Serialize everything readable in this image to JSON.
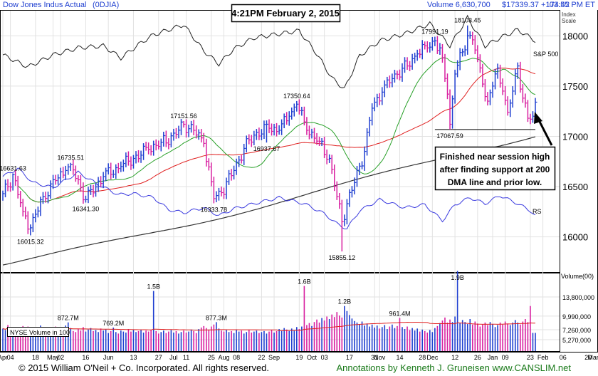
{
  "header": {
    "title": "Dow Jones Indus Actual",
    "symbol": "(0DJIA)",
    "volume": "Volume 6,630,700",
    "price": "$17339.37 +174.42",
    "time": "03:55 PM ET",
    "timestamp_box": "4:21PM February 2, 2015"
  },
  "labels": {
    "index_scale": [
      "Index",
      "Scale"
    ],
    "sp500": "S&P 500",
    "rs": "RS",
    "volume_axis": "Volume(00)",
    "nyse_volume": "NYSE Volume in 100"
  },
  "annotation": {
    "lines": [
      "Finished near session high",
      "after finding support at 200",
      "DMA line and prior low."
    ]
  },
  "footer": {
    "copyright": "© 2015  William O'Neil + Co. Incorporated. All rights reserved.",
    "credit": "Annotations by Kenneth J. Gruneisen www.CANSLIM.net"
  },
  "colors": {
    "up_bar": "#1f3fd0",
    "down_bar": "#d81fa0",
    "sp500": "#222222",
    "rs": "#3a3adf",
    "dma50": "#2aa12a",
    "dma200": "#333333",
    "red_ma": "#e02020",
    "vol_ma": "#e02020",
    "grid": "#e2e2e2",
    "credit": "#1a7a1a"
  },
  "chart_data": {
    "type": "bar",
    "series_kind": "ohlc-daily",
    "y_price_ticks": [
      16000,
      16500,
      17000,
      17500,
      18000
    ],
    "y_price_range": [
      15650,
      18250
    ],
    "y_volume_ticks": [
      "13,800,000",
      "9,990,000",
      "7,260,000",
      "5,270,000"
    ],
    "y_volume_values": [
      13800000,
      9990000,
      7260000,
      5270000
    ],
    "y_volume_range": [
      3000000,
      18500000
    ],
    "x_tick_labels": [
      "Apr",
      "04",
      "18",
      "May",
      "02",
      "16",
      "Jun",
      "13",
      "27",
      "Jul",
      "11",
      "25",
      "Aug",
      "08",
      "22",
      "Sep",
      "19",
      "Oct",
      "03",
      "17",
      "31",
      "Nov",
      "14",
      "28",
      "Dec",
      "12",
      "26",
      "Jan",
      "09",
      "23",
      "Feb",
      "06",
      "20",
      "Mar"
    ],
    "x_tick_index": [
      0,
      3,
      13,
      20,
      23,
      33,
      42,
      52,
      62,
      68,
      73,
      83,
      88,
      93,
      103,
      108,
      118,
      123,
      128,
      138,
      148,
      150,
      158,
      167,
      171,
      180,
      189,
      195,
      200,
      210,
      215,
      223,
      233,
      235
    ],
    "price_callouts": [
      {
        "label": "16631.63",
        "i": 4,
        "v": 16632
      },
      {
        "label": "16015.32",
        "i": 11,
        "v": 16015
      },
      {
        "label": "16735.51",
        "i": 27,
        "v": 16736
      },
      {
        "label": "16341.30",
        "i": 33,
        "v": 16341
      },
      {
        "label": "17151.56",
        "i": 72,
        "v": 17152
      },
      {
        "label": "16333.78",
        "i": 84,
        "v": 16334
      },
      {
        "label": "16937.67",
        "i": 105,
        "v": 16938
      },
      {
        "label": "17350.64",
        "i": 117,
        "v": 17351
      },
      {
        "label": "15855.12",
        "i": 135,
        "v": 15855
      },
      {
        "label": "17991.19",
        "i": 172,
        "v": 17991
      },
      {
        "label": "18103.45",
        "i": 185,
        "v": 18103
      },
      {
        "label": "17067.59",
        "i": 178,
        "v": 17068
      }
    ],
    "volume_callouts": [
      {
        "label": "872.7M",
        "i": 26,
        "v": 8727000
      },
      {
        "label": "769.2M",
        "i": 44,
        "v": 7692000
      },
      {
        "label": "1.5B",
        "i": 60,
        "v": 15000000
      },
      {
        "label": "877.3M",
        "i": 85,
        "v": 8773000
      },
      {
        "label": "1.6B",
        "i": 120,
        "v": 16000000
      },
      {
        "label": "1.2B",
        "i": 136,
        "v": 12000000
      },
      {
        "label": "961.4M",
        "i": 158,
        "v": 9614000
      },
      {
        "label": "1.9B",
        "i": 181,
        "v": 19000000
      }
    ],
    "support_line": {
      "value": 17068,
      "i0": 172,
      "i1": 212
    },
    "n_days": 213,
    "price_anchors": [
      [
        0,
        16430
      ],
      [
        2,
        16500
      ],
      [
        4,
        16620
      ],
      [
        8,
        16250
      ],
      [
        11,
        16090
      ],
      [
        16,
        16400
      ],
      [
        21,
        16560
      ],
      [
        25,
        16660
      ],
      [
        27,
        16720
      ],
      [
        33,
        16370
      ],
      [
        40,
        16600
      ],
      [
        47,
        16700
      ],
      [
        52,
        16780
      ],
      [
        58,
        16870
      ],
      [
        63,
        16940
      ],
      [
        69,
        17020
      ],
      [
        72,
        17120
      ],
      [
        76,
        17060
      ],
      [
        80,
        16930
      ],
      [
        84,
        16380
      ],
      [
        87,
        16440
      ],
      [
        92,
        16660
      ],
      [
        96,
        16880
      ],
      [
        101,
        17040
      ],
      [
        106,
        17080
      ],
      [
        110,
        17060
      ],
      [
        114,
        17200
      ],
      [
        117,
        17320
      ],
      [
        121,
        17060
      ],
      [
        126,
        16950
      ],
      [
        130,
        16780
      ],
      [
        133,
        16400
      ],
      [
        135,
        16150
      ],
      [
        137,
        16330
      ],
      [
        140,
        16540
      ],
      [
        144,
        16850
      ],
      [
        147,
        17280
      ],
      [
        151,
        17440
      ],
      [
        156,
        17620
      ],
      [
        161,
        17700
      ],
      [
        165,
        17820
      ],
      [
        169,
        17880
      ],
      [
        172,
        17950
      ],
      [
        175,
        17780
      ],
      [
        177,
        17420
      ],
      [
        178,
        17120
      ],
      [
        180,
        17620
      ],
      [
        183,
        17840
      ],
      [
        185,
        18000
      ],
      [
        187,
        17960
      ],
      [
        189,
        17780
      ],
      [
        191,
        17520
      ],
      [
        193,
        17350
      ],
      [
        195,
        17500
      ],
      [
        197,
        17680
      ],
      [
        199,
        17450
      ],
      [
        201,
        17240
      ],
      [
        203,
        17450
      ],
      [
        205,
        17700
      ],
      [
        207,
        17380
      ],
      [
        209,
        17180
      ],
      [
        211,
        17200
      ],
      [
        212,
        17340
      ]
    ],
    "sp500_anchors": [
      [
        0,
        17810
      ],
      [
        10,
        17690
      ],
      [
        20,
        17810
      ],
      [
        30,
        17880
      ],
      [
        40,
        17900
      ],
      [
        47,
        17780
      ],
      [
        55,
        17930
      ],
      [
        60,
        18010
      ],
      [
        66,
        18060
      ],
      [
        72,
        18110
      ],
      [
        80,
        17850
      ],
      [
        86,
        17720
      ],
      [
        92,
        17870
      ],
      [
        100,
        17980
      ],
      [
        110,
        18020
      ],
      [
        118,
        18050
      ],
      [
        125,
        17820
      ],
      [
        131,
        17580
      ],
      [
        136,
        17470
      ],
      [
        142,
        17800
      ],
      [
        150,
        17950
      ],
      [
        160,
        18020
      ],
      [
        170,
        18120
      ],
      [
        178,
        17900
      ],
      [
        185,
        18180
      ],
      [
        192,
        17900
      ],
      [
        198,
        17980
      ],
      [
        205,
        18060
      ],
      [
        212,
        17950
      ]
    ],
    "rs_anchors": [
      [
        0,
        16600
      ],
      [
        6,
        16680
      ],
      [
        12,
        16540
      ],
      [
        20,
        16490
      ],
      [
        30,
        16640
      ],
      [
        38,
        16520
      ],
      [
        46,
        16420
      ],
      [
        52,
        16430
      ],
      [
        60,
        16390
      ],
      [
        66,
        16270
      ],
      [
        72,
        16240
      ],
      [
        80,
        16290
      ],
      [
        86,
        16210
      ],
      [
        92,
        16280
      ],
      [
        100,
        16330
      ],
      [
        110,
        16390
      ],
      [
        120,
        16330
      ],
      [
        128,
        16230
      ],
      [
        133,
        16130
      ],
      [
        137,
        16080
      ],
      [
        142,
        16260
      ],
      [
        150,
        16370
      ],
      [
        160,
        16290
      ],
      [
        168,
        16320
      ],
      [
        175,
        16160
      ],
      [
        180,
        16320
      ],
      [
        186,
        16390
      ],
      [
        192,
        16330
      ],
      [
        198,
        16410
      ],
      [
        205,
        16330
      ],
      [
        210,
        16260
      ],
      [
        212,
        16210
      ]
    ],
    "volume_values": [
      7500000,
      7200000,
      8200000,
      6900000,
      7400000,
      7800000,
      6600000,
      7100000,
      8000000,
      7700000,
      7900000,
      7300000,
      6800000,
      7600000,
      7200000,
      8100000,
      7000000,
      7400000,
      7800000,
      6700000,
      7300000,
      7900000,
      6500000,
      7700000,
      7200000,
      8100000,
      8727000,
      7600000,
      7000000,
      6800000,
      7400000,
      7100000,
      7800000,
      6900000,
      7300000,
      7600000,
      7000000,
      7200000,
      6800000,
      7500000,
      7100000,
      7300000,
      6600000,
      7000000,
      7692000,
      6800000,
      6500000,
      7100000,
      6900000,
      6700000,
      7400000,
      6900000,
      7200000,
      6800000,
      7000000,
      7300000,
      6700000,
      7100000,
      6900000,
      7200000,
      15000000,
      7000000,
      6500000,
      6800000,
      7100000,
      6600000,
      6900000,
      7200000,
      6700000,
      7000000,
      6500000,
      6800000,
      7100000,
      6700000,
      6900000,
      7300000,
      7000000,
      6600000,
      7400000,
      7700000,
      8000000,
      7600000,
      7300000,
      7900000,
      8300000,
      8773000,
      7500000,
      7100000,
      6900000,
      7200000,
      6800000,
      7000000,
      6600000,
      7300000,
      6900000,
      7100000,
      6500000,
      6800000,
      7200000,
      6700000,
      6900000,
      7100000,
      6600000,
      6800000,
      7000000,
      6500000,
      6900000,
      7200000,
      6700000,
      7000000,
      7400000,
      7100000,
      7600000,
      7300000,
      7000000,
      7500000,
      7200000,
      7800000,
      7400000,
      7900000,
      16000000,
      8200000,
      8600000,
      8000000,
      8800000,
      9300000,
      8700000,
      9600000,
      9100000,
      9900000,
      9400000,
      10300000,
      9800000,
      10800000,
      10100000,
      9700000,
      12000000,
      11000000,
      10200000,
      9500000,
      9000000,
      8700000,
      8300000,
      8900000,
      8100000,
      8500000,
      7900000,
      8300000,
      7700000,
      8100000,
      7500000,
      7800000,
      8200000,
      7400000,
      7900000,
      8300000,
      7600000,
      8000000,
      9614000,
      7800000,
      7400000,
      7900000,
      7200000,
      7600000,
      7100000,
      7500000,
      6900000,
      7300000,
      7000000,
      6700000,
      7200000,
      6800000,
      7600000,
      8000000,
      8600000,
      9100000,
      9700000,
      8700000,
      9300000,
      8800000,
      9900000,
      19000000,
      8600000,
      9200000,
      8800000,
      8400000,
      9400000,
      8300000,
      8900000,
      8500000,
      7900000,
      8300000,
      8700000,
      8200000,
      8800000,
      8400000,
      7800000,
      8200000,
      8700000,
      8300000,
      8900000,
      8500000,
      8200000,
      8700000,
      9200000,
      8700000,
      8300000,
      8900000,
      9400000,
      8800000,
      12000000,
      6630700,
      6630700
    ]
  }
}
